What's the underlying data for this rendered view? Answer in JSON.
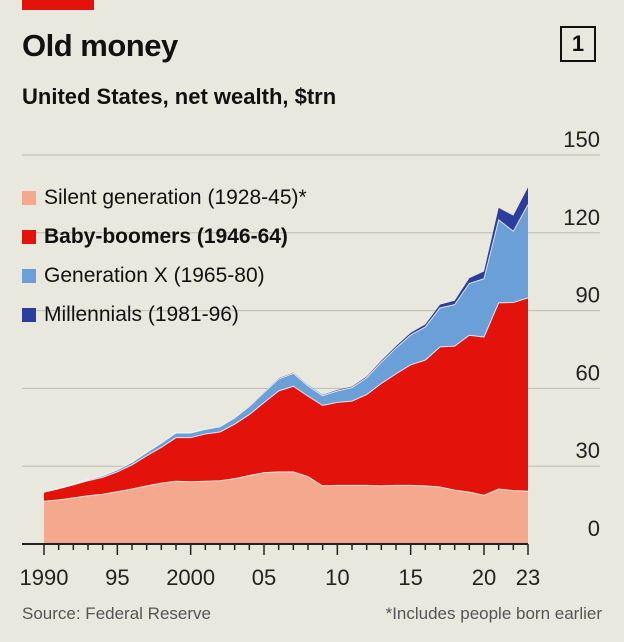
{
  "header": {
    "title": "Old money",
    "chart_number": "1",
    "subtitle": "United States, net wealth, $trn"
  },
  "footer": {
    "source": "Source: Federal Reserve",
    "note": "*Includes people born earlier"
  },
  "colors": {
    "background": "#e9e8df",
    "grid": "#bdbcb3",
    "axis": "#222222",
    "brand_red": "#e3120b"
  },
  "chart_data": {
    "type": "area",
    "stacked": true,
    "title": "Old money",
    "subtitle": "United States, net wealth, $trn",
    "x": [
      1990,
      1991,
      1992,
      1993,
      1994,
      1995,
      1996,
      1997,
      1998,
      1999,
      2000,
      2001,
      2002,
      2003,
      2004,
      2005,
      2006,
      2007,
      2008,
      2009,
      2010,
      2011,
      2012,
      2013,
      2014,
      2015,
      2016,
      2017,
      2018,
      2019,
      2020,
      2021,
      2022,
      2023
    ],
    "series": [
      {
        "name": "Silent generation (1928-45)*",
        "color": "#f4a98e",
        "values": [
          16.5,
          17,
          17.8,
          18.6,
          19.2,
          20.2,
          21.2,
          22.4,
          23.5,
          24.2,
          24,
          24.2,
          24.4,
          25.2,
          26.4,
          27.5,
          27.8,
          27.8,
          26,
          22.4,
          22.6,
          22.6,
          22.6,
          22.4,
          22.6,
          22.6,
          22.4,
          22,
          20.8,
          20,
          18.8,
          21.2,
          20.6,
          20.4
        ]
      },
      {
        "name": "Baby-boomers (1946-64)",
        "color": "#e3120b",
        "bold": true,
        "values": [
          3.5,
          4.3,
          5,
          5.8,
          6.5,
          7.6,
          9.3,
          11.6,
          13.8,
          16.8,
          17,
          18.2,
          18.8,
          21,
          23.5,
          27,
          31.2,
          33,
          31,
          31,
          32,
          32.5,
          35,
          39.5,
          43,
          46.5,
          48.5,
          54,
          55.5,
          60.5,
          61,
          71.8,
          72.5,
          74.5
        ]
      },
      {
        "name": "Generation X (1965-80)",
        "color": "#6b9fd8",
        "values": [
          0,
          0.1,
          0.2,
          0.4,
          0.6,
          0.8,
          1,
          1.3,
          1.6,
          1.8,
          1.8,
          1.8,
          2,
          2.4,
          3.1,
          3.9,
          4.6,
          5,
          4,
          3.8,
          4.4,
          5.2,
          6.5,
          8.2,
          10,
          11.5,
          12.8,
          15,
          16,
          20,
          22.5,
          32,
          27.5,
          36
        ]
      },
      {
        "name": "Millennials (1981-96)",
        "color": "#2b3d9e",
        "values": [
          0,
          0,
          0,
          0,
          0,
          0,
          0,
          0,
          0,
          0,
          0,
          0,
          0.1,
          0.1,
          0.2,
          0.2,
          0.3,
          0.3,
          0.3,
          0.3,
          0.4,
          0.4,
          0.5,
          0.6,
          0.7,
          0.8,
          1,
          1.3,
          1.5,
          2,
          2.8,
          4.6,
          6,
          6.6
        ]
      }
    ],
    "ylim": [
      0,
      150
    ],
    "yticks": [
      0,
      30,
      60,
      90,
      120,
      150
    ],
    "xlim": [
      1990,
      2023
    ],
    "xticks": [
      1990,
      1995,
      2000,
      2005,
      2010,
      2015,
      2020,
      2023
    ],
    "xtick_labels": [
      "1990",
      "95",
      "2000",
      "05",
      "10",
      "15",
      "20",
      "23"
    ],
    "grid": true,
    "legend_position": "top-left",
    "xlabel": "",
    "ylabel": ""
  }
}
